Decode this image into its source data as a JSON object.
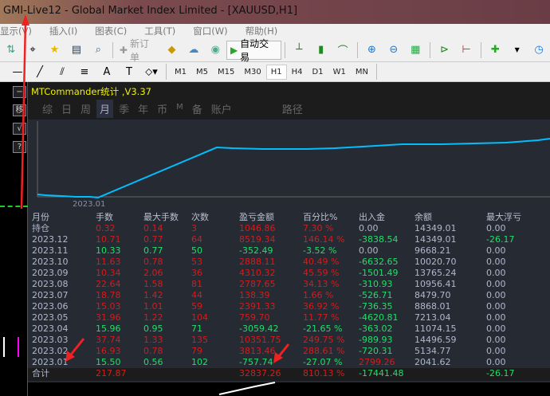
{
  "window": {
    "title": "GMI-Live12 - Global Market Index Limited - [XAUUSD,H1]"
  },
  "menu": [
    "显示(V)",
    "插入(I)",
    "图表(C)",
    "工具(T)",
    "窗口(W)",
    "帮助(H)"
  ],
  "toolbar": {
    "new_order": "新订单",
    "auto_trade": "自动交易"
  },
  "timeframes": [
    "M1",
    "M5",
    "M15",
    "M30",
    "H1",
    "H4",
    "D1",
    "W1",
    "MN"
  ],
  "active_timeframe": "H1",
  "side_buttons": [
    "−",
    "移",
    "√",
    "?"
  ],
  "panel": {
    "title": "MTCommander统计 ,V3.37",
    "tabs": [
      "综",
      "日",
      "周",
      "月",
      "季",
      "年",
      "币",
      "M",
      "备",
      "账户"
    ],
    "active_tab": "月",
    "path_label": "路径",
    "chart_axis_label": "2023.01"
  },
  "colors": {
    "profit": "#d51c1c",
    "loss": "#1ee068",
    "neutral": "#b0b8cc",
    "line": "#00bfff"
  },
  "table": {
    "headers": [
      "月份",
      "手数",
      "最大手数",
      "次数",
      "盈亏金额",
      "百分比%",
      "出入金",
      "余额",
      "最大浮亏"
    ],
    "rows": [
      {
        "cells": [
          "持仓",
          "0.32",
          "0.14",
          "3",
          "1046.86",
          "7.30 %",
          "0.00",
          "14349.01",
          "0.00"
        ],
        "colors": [
          "grey",
          "red",
          "red",
          "red",
          "red",
          "red",
          "grey",
          "grey",
          "grey"
        ]
      },
      {
        "cells": [
          "2023.12",
          "10.71",
          "0.77",
          "64",
          "8519.34",
          "146.14 %",
          "-3838.54",
          "14349.01",
          "-26.17"
        ],
        "colors": [
          "grey",
          "red",
          "red",
          "red",
          "red",
          "red",
          "green",
          "grey",
          "green"
        ]
      },
      {
        "cells": [
          "2023.11",
          "10.33",
          "0.77",
          "50",
          "-352.49",
          "-3.52 %",
          "0.00",
          "9668.21",
          "0.00"
        ],
        "colors": [
          "grey",
          "green",
          "green",
          "green",
          "green",
          "green",
          "grey",
          "grey",
          "grey"
        ]
      },
      {
        "cells": [
          "2023.10",
          "11.63",
          "0.78",
          "53",
          "2888.11",
          "40.49 %",
          "-6632.65",
          "10020.70",
          "0.00"
        ],
        "colors": [
          "grey",
          "red",
          "red",
          "red",
          "red",
          "red",
          "green",
          "grey",
          "grey"
        ]
      },
      {
        "cells": [
          "2023.09",
          "10.34",
          "2.06",
          "36",
          "4310.32",
          "45.59 %",
          "-1501.49",
          "13765.24",
          "0.00"
        ],
        "colors": [
          "grey",
          "red",
          "red",
          "red",
          "red",
          "red",
          "green",
          "grey",
          "grey"
        ]
      },
      {
        "cells": [
          "2023.08",
          "22.64",
          "1.58",
          "81",
          "2787.65",
          "34.13 %",
          "-310.93",
          "10956.41",
          "0.00"
        ],
        "colors": [
          "grey",
          "red",
          "red",
          "red",
          "red",
          "red",
          "green",
          "grey",
          "grey"
        ]
      },
      {
        "cells": [
          "2023.07",
          "18.78",
          "1.42",
          "44",
          "138.39",
          "1.66 %",
          "-526.71",
          "8479.70",
          "0.00"
        ],
        "colors": [
          "grey",
          "red",
          "red",
          "red",
          "red",
          "red",
          "green",
          "grey",
          "grey"
        ]
      },
      {
        "cells": [
          "2023.06",
          "15.03",
          "1.01",
          "59",
          "2391.33",
          "36.92 %",
          "-736.35",
          "8868.01",
          "0.00"
        ],
        "colors": [
          "grey",
          "red",
          "red",
          "red",
          "red",
          "red",
          "green",
          "grey",
          "grey"
        ]
      },
      {
        "cells": [
          "2023.05",
          "31.96",
          "1.22",
          "104",
          "759.70",
          "11.77 %",
          "-4620.81",
          "7213.04",
          "0.00"
        ],
        "colors": [
          "grey",
          "red",
          "red",
          "red",
          "red",
          "red",
          "green",
          "grey",
          "grey"
        ]
      },
      {
        "cells": [
          "2023.04",
          "15.96",
          "0.95",
          "71",
          "-3059.42",
          "-21.65 %",
          "-363.02",
          "11074.15",
          "0.00"
        ],
        "colors": [
          "grey",
          "green",
          "green",
          "green",
          "green",
          "green",
          "green",
          "grey",
          "grey"
        ]
      },
      {
        "cells": [
          "2023.03",
          "37.74",
          "1.33",
          "135",
          "10351.75",
          "249.75 %",
          "-989.93",
          "14496.59",
          "0.00"
        ],
        "colors": [
          "grey",
          "red",
          "red",
          "red",
          "red",
          "red",
          "green",
          "grey",
          "grey"
        ]
      },
      {
        "cells": [
          "2023.02",
          "16.93",
          "0.78",
          "79",
          "3813.46",
          "288.61 %",
          "-720.31",
          "5134.77",
          "0.00"
        ],
        "colors": [
          "grey",
          "red",
          "red",
          "red",
          "red",
          "red",
          "green",
          "grey",
          "grey"
        ]
      },
      {
        "cells": [
          "2023.01",
          "15.50",
          "0.56",
          "102",
          "-757.74",
          "-27.07 %",
          "2799.26",
          "2041.62",
          "0.00"
        ],
        "colors": [
          "grey",
          "green",
          "green",
          "green",
          "green",
          "green",
          "red",
          "grey",
          "grey"
        ]
      }
    ],
    "total": {
      "cells": [
        "合计",
        "217.87",
        "",
        "",
        "32837.26",
        "810.13 %",
        "-17441.48",
        "",
        "-26.17"
      ],
      "colors": [
        "grey",
        "red",
        "",
        "",
        "red",
        "red",
        "green",
        "",
        "green"
      ]
    }
  }
}
